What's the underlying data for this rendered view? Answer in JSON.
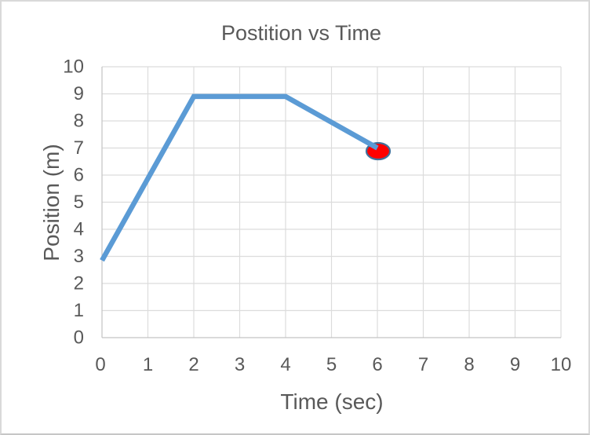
{
  "window": {
    "background": "#ffffff",
    "border_color": "#d9d9d9"
  },
  "chart_data": {
    "type": "line",
    "title": "Postition vs Time",
    "xlabel": "Time (sec)",
    "ylabel": "Position (m)",
    "x": [
      0,
      2,
      4,
      6
    ],
    "y": [
      2.85,
      8.9,
      8.9,
      7
    ],
    "xlim": [
      0,
      10
    ],
    "ylim": [
      0,
      10
    ],
    "x_ticks": [
      "0",
      "1",
      "2",
      "3",
      "4",
      "5",
      "6",
      "7",
      "8",
      "9",
      "10"
    ],
    "y_ticks": [
      "0",
      "1",
      "2",
      "3",
      "4",
      "5",
      "6",
      "7",
      "8",
      "9",
      "10"
    ],
    "grid": "on",
    "legend": "none",
    "line_color": "#5B9BD5",
    "line_width": 6.5,
    "marker": {
      "x": 6,
      "y": 7,
      "shape": "ellipse",
      "fill": "#FF0000",
      "outline": "#41719C"
    },
    "text_color": "#595959",
    "gridline_color": "#DCDCDC",
    "axis_line_color": "#C3C3C3"
  }
}
